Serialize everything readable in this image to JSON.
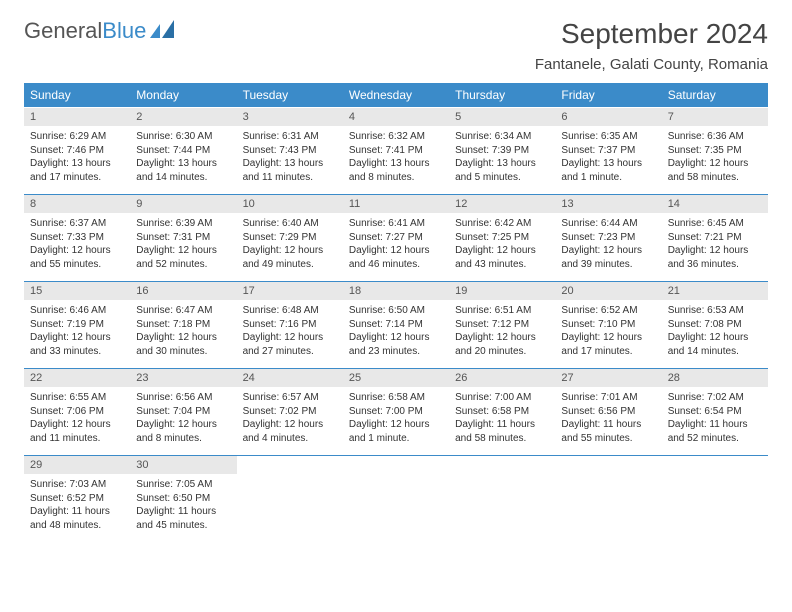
{
  "brand": {
    "part1": "General",
    "part2": "Blue"
  },
  "title": "September 2024",
  "location": "Fantanele, Galati County, Romania",
  "colors": {
    "header_bg": "#3b8bc9",
    "header_text": "#ffffff",
    "daynum_bg": "#e8e8e8",
    "daynum_text": "#555555",
    "body_text": "#333333",
    "accent_line": "#3b8bc9"
  },
  "dow": [
    "Sunday",
    "Monday",
    "Tuesday",
    "Wednesday",
    "Thursday",
    "Friday",
    "Saturday"
  ],
  "weeks": [
    {
      "nums": [
        "1",
        "2",
        "3",
        "4",
        "5",
        "6",
        "7"
      ],
      "cells": [
        {
          "sunrise": "6:29 AM",
          "sunset": "7:46 PM",
          "day_h": 13,
          "day_m": 17
        },
        {
          "sunrise": "6:30 AM",
          "sunset": "7:44 PM",
          "day_h": 13,
          "day_m": 14
        },
        {
          "sunrise": "6:31 AM",
          "sunset": "7:43 PM",
          "day_h": 13,
          "day_m": 11
        },
        {
          "sunrise": "6:32 AM",
          "sunset": "7:41 PM",
          "day_h": 13,
          "day_m": 8
        },
        {
          "sunrise": "6:34 AM",
          "sunset": "7:39 PM",
          "day_h": 13,
          "day_m": 5
        },
        {
          "sunrise": "6:35 AM",
          "sunset": "7:37 PM",
          "day_h": 13,
          "day_m": 1
        },
        {
          "sunrise": "6:36 AM",
          "sunset": "7:35 PM",
          "day_h": 12,
          "day_m": 58
        }
      ]
    },
    {
      "nums": [
        "8",
        "9",
        "10",
        "11",
        "12",
        "13",
        "14"
      ],
      "cells": [
        {
          "sunrise": "6:37 AM",
          "sunset": "7:33 PM",
          "day_h": 12,
          "day_m": 55
        },
        {
          "sunrise": "6:39 AM",
          "sunset": "7:31 PM",
          "day_h": 12,
          "day_m": 52
        },
        {
          "sunrise": "6:40 AM",
          "sunset": "7:29 PM",
          "day_h": 12,
          "day_m": 49
        },
        {
          "sunrise": "6:41 AM",
          "sunset": "7:27 PM",
          "day_h": 12,
          "day_m": 46
        },
        {
          "sunrise": "6:42 AM",
          "sunset": "7:25 PM",
          "day_h": 12,
          "day_m": 43
        },
        {
          "sunrise": "6:44 AM",
          "sunset": "7:23 PM",
          "day_h": 12,
          "day_m": 39
        },
        {
          "sunrise": "6:45 AM",
          "sunset": "7:21 PM",
          "day_h": 12,
          "day_m": 36
        }
      ]
    },
    {
      "nums": [
        "15",
        "16",
        "17",
        "18",
        "19",
        "20",
        "21"
      ],
      "cells": [
        {
          "sunrise": "6:46 AM",
          "sunset": "7:19 PM",
          "day_h": 12,
          "day_m": 33
        },
        {
          "sunrise": "6:47 AM",
          "sunset": "7:18 PM",
          "day_h": 12,
          "day_m": 30
        },
        {
          "sunrise": "6:48 AM",
          "sunset": "7:16 PM",
          "day_h": 12,
          "day_m": 27
        },
        {
          "sunrise": "6:50 AM",
          "sunset": "7:14 PM",
          "day_h": 12,
          "day_m": 23
        },
        {
          "sunrise": "6:51 AM",
          "sunset": "7:12 PM",
          "day_h": 12,
          "day_m": 20
        },
        {
          "sunrise": "6:52 AM",
          "sunset": "7:10 PM",
          "day_h": 12,
          "day_m": 17
        },
        {
          "sunrise": "6:53 AM",
          "sunset": "7:08 PM",
          "day_h": 12,
          "day_m": 14
        }
      ]
    },
    {
      "nums": [
        "22",
        "23",
        "24",
        "25",
        "26",
        "27",
        "28"
      ],
      "cells": [
        {
          "sunrise": "6:55 AM",
          "sunset": "7:06 PM",
          "day_h": 12,
          "day_m": 11
        },
        {
          "sunrise": "6:56 AM",
          "sunset": "7:04 PM",
          "day_h": 12,
          "day_m": 8
        },
        {
          "sunrise": "6:57 AM",
          "sunset": "7:02 PM",
          "day_h": 12,
          "day_m": 4
        },
        {
          "sunrise": "6:58 AM",
          "sunset": "7:00 PM",
          "day_h": 12,
          "day_m": 1
        },
        {
          "sunrise": "7:00 AM",
          "sunset": "6:58 PM",
          "day_h": 11,
          "day_m": 58
        },
        {
          "sunrise": "7:01 AM",
          "sunset": "6:56 PM",
          "day_h": 11,
          "day_m": 55
        },
        {
          "sunrise": "7:02 AM",
          "sunset": "6:54 PM",
          "day_h": 11,
          "day_m": 52
        }
      ]
    },
    {
      "nums": [
        "29",
        "30",
        "",
        "",
        "",
        "",
        ""
      ],
      "cells": [
        {
          "sunrise": "7:03 AM",
          "sunset": "6:52 PM",
          "day_h": 11,
          "day_m": 48
        },
        {
          "sunrise": "7:05 AM",
          "sunset": "6:50 PM",
          "day_h": 11,
          "day_m": 45
        },
        null,
        null,
        null,
        null,
        null
      ]
    }
  ],
  "labels": {
    "sunrise": "Sunrise:",
    "sunset": "Sunset:",
    "daylight_prefix": "Daylight:",
    "hours_word": "hours",
    "and_word": "and",
    "minutes_word": "minutes.",
    "minute_word": "minute."
  }
}
